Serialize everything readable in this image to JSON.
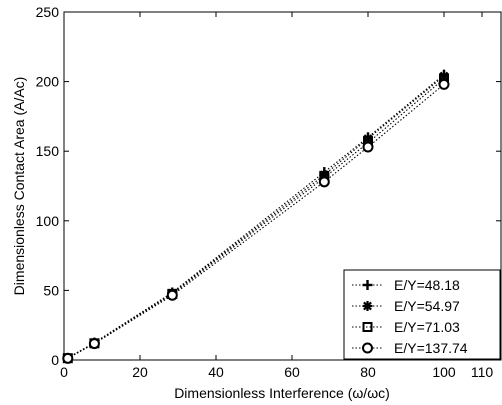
{
  "chart_data": {
    "type": "line",
    "xlabel": "Dimensionless Interference (ω/ωc)",
    "ylabel": "Dimensionless Contact Area  (A/Ac)",
    "xlim": [
      0,
      115
    ],
    "ylim": [
      0,
      250
    ],
    "xticks": [
      0,
      20,
      40,
      60,
      80,
      100,
      110
    ],
    "yticks": [
      0,
      50,
      100,
      150,
      200,
      250
    ],
    "grid": false,
    "legend_position": "bottom-right",
    "line_style": "dotted",
    "series": [
      {
        "name": "E/Y=48.18",
        "marker": "plus",
        "x": [
          1,
          8,
          28.5,
          68.5,
          80,
          100
        ],
        "y": [
          1.5,
          12.5,
          48.5,
          135,
          160,
          205
        ]
      },
      {
        "name": "E/Y=54.97",
        "marker": "asterisk",
        "x": [
          1,
          8,
          28.5,
          68.5,
          80,
          100
        ],
        "y": [
          1.5,
          12.2,
          48,
          133,
          159,
          204
        ]
      },
      {
        "name": "E/Y=71.03",
        "marker": "square",
        "x": [
          1,
          8,
          28.5,
          68.5,
          80,
          100
        ],
        "y": [
          1.3,
          12,
          47.5,
          131,
          156,
          202
        ]
      },
      {
        "name": "E/Y=137.74",
        "marker": "circle",
        "x": [
          1,
          8,
          28.5,
          68.5,
          80,
          100
        ],
        "y": [
          1.2,
          11.8,
          46.5,
          128,
          153,
          198
        ]
      }
    ]
  }
}
